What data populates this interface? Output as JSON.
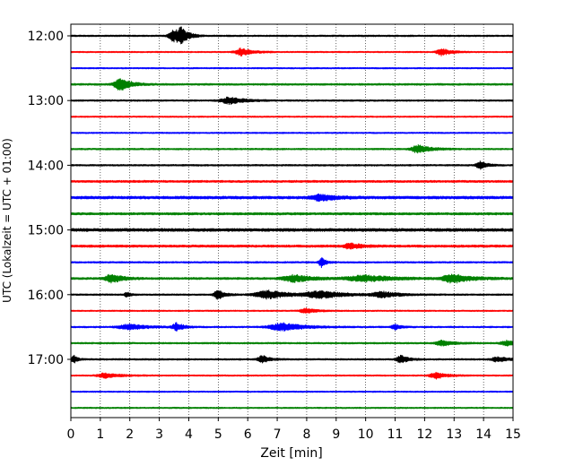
{
  "chart_data": {
    "type": "line",
    "title": "",
    "xlabel": "Zeit  [min]",
    "ylabel": "UTC (Lokalzeit = UTC + 01:00)",
    "xlim": [
      0,
      15
    ],
    "x_ticks": [
      0,
      1,
      2,
      3,
      4,
      5,
      6,
      7,
      8,
      9,
      10,
      11,
      12,
      13,
      14,
      15
    ],
    "y_ticks": [
      {
        "label": "12:00",
        "row": 0
      },
      {
        "label": "13:00",
        "row": 4
      },
      {
        "label": "14:00",
        "row": 8
      },
      {
        "label": "15:00",
        "row": 12
      },
      {
        "label": "16:00",
        "row": 16
      },
      {
        "label": "17:00",
        "row": 20
      }
    ],
    "grid": {
      "x": true,
      "y": false,
      "style": "dotted"
    },
    "row_minutes": 15,
    "colors": [
      "#000000",
      "#ff0000",
      "#0000ff",
      "#008000"
    ],
    "series": [
      {
        "start": "12:00",
        "noise": 0.35,
        "events": [
          {
            "t": 3.5,
            "amp": 2.3,
            "w": 0.25
          },
          {
            "t": 3.75,
            "amp": 2.6,
            "w": 0.2
          }
        ]
      },
      {
        "start": "12:15",
        "noise": 0.3,
        "events": [
          {
            "t": 5.8,
            "amp": 1.6,
            "w": 0.3
          },
          {
            "t": 12.6,
            "amp": 1.5,
            "w": 0.25
          }
        ]
      },
      {
        "start": "12:30",
        "noise": 0.3,
        "events": []
      },
      {
        "start": "12:45",
        "noise": 0.4,
        "events": [
          {
            "t": 1.7,
            "amp": 2.6,
            "w": 0.3
          }
        ]
      },
      {
        "start": "13:00",
        "noise": 0.35,
        "events": [
          {
            "t": 5.4,
            "amp": 1.4,
            "w": 0.4
          }
        ]
      },
      {
        "start": "13:15",
        "noise": 0.3,
        "events": []
      },
      {
        "start": "13:30",
        "noise": 0.3,
        "events": []
      },
      {
        "start": "13:45",
        "noise": 0.35,
        "events": [
          {
            "t": 11.8,
            "amp": 1.6,
            "w": 0.35
          }
        ]
      },
      {
        "start": "14:00",
        "noise": 0.35,
        "events": [
          {
            "t": 13.9,
            "amp": 1.5,
            "w": 0.2
          }
        ]
      },
      {
        "start": "14:15",
        "noise": 0.45,
        "events": []
      },
      {
        "start": "14:30",
        "noise": 0.6,
        "events": [
          {
            "t": 8.5,
            "amp": 1.2,
            "w": 0.4
          }
        ]
      },
      {
        "start": "14:45",
        "noise": 0.5,
        "events": []
      },
      {
        "start": "15:00",
        "noise": 0.65,
        "events": []
      },
      {
        "start": "15:15",
        "noise": 0.5,
        "events": [
          {
            "t": 9.5,
            "amp": 1.1,
            "w": 0.3
          }
        ]
      },
      {
        "start": "15:30",
        "noise": 0.35,
        "events": [
          {
            "t": 8.5,
            "amp": 2.0,
            "w": 0.12
          }
        ]
      },
      {
        "start": "15:45",
        "noise": 0.45,
        "events": [
          {
            "t": 1.4,
            "amp": 1.8,
            "w": 0.3
          },
          {
            "t": 7.6,
            "amp": 1.4,
            "w": 0.5
          },
          {
            "t": 10.0,
            "amp": 1.3,
            "w": 0.8
          },
          {
            "t": 13.0,
            "amp": 1.8,
            "w": 0.5
          }
        ]
      },
      {
        "start": "16:00",
        "noise": 0.35,
        "events": [
          {
            "t": 1.9,
            "amp": 1.2,
            "w": 0.1
          },
          {
            "t": 5.0,
            "amp": 1.8,
            "w": 0.2
          },
          {
            "t": 6.7,
            "amp": 1.7,
            "w": 0.6
          },
          {
            "t": 8.5,
            "amp": 1.4,
            "w": 0.7
          },
          {
            "t": 10.6,
            "amp": 1.1,
            "w": 0.5
          }
        ]
      },
      {
        "start": "16:15",
        "noise": 0.3,
        "events": [
          {
            "t": 8.0,
            "amp": 1.0,
            "w": 0.3
          }
        ]
      },
      {
        "start": "16:30",
        "noise": 0.35,
        "events": [
          {
            "t": 2.0,
            "amp": 1.1,
            "w": 0.5
          },
          {
            "t": 3.6,
            "amp": 1.6,
            "w": 0.2
          },
          {
            "t": 7.2,
            "amp": 1.6,
            "w": 0.6
          },
          {
            "t": 11.0,
            "amp": 1.2,
            "w": 0.15
          }
        ]
      },
      {
        "start": "16:45",
        "noise": 0.35,
        "events": [
          {
            "t": 12.6,
            "amp": 1.1,
            "w": 0.3
          },
          {
            "t": 14.8,
            "amp": 1.0,
            "w": 0.3
          }
        ]
      },
      {
        "start": "17:00",
        "noise": 0.35,
        "events": [
          {
            "t": 0.1,
            "amp": 1.8,
            "w": 0.1
          },
          {
            "t": 6.5,
            "amp": 1.6,
            "w": 0.2
          },
          {
            "t": 11.2,
            "amp": 1.6,
            "w": 0.2
          },
          {
            "t": 14.5,
            "amp": 1.0,
            "w": 0.3
          }
        ]
      },
      {
        "start": "17:15",
        "noise": 0.3,
        "events": [
          {
            "t": 1.2,
            "amp": 1.0,
            "w": 0.4
          },
          {
            "t": 12.4,
            "amp": 1.3,
            "w": 0.3
          }
        ]
      },
      {
        "start": "17:30",
        "noise": 0.3,
        "events": []
      },
      {
        "start": "17:45",
        "noise": 0.3,
        "events": []
      }
    ]
  }
}
